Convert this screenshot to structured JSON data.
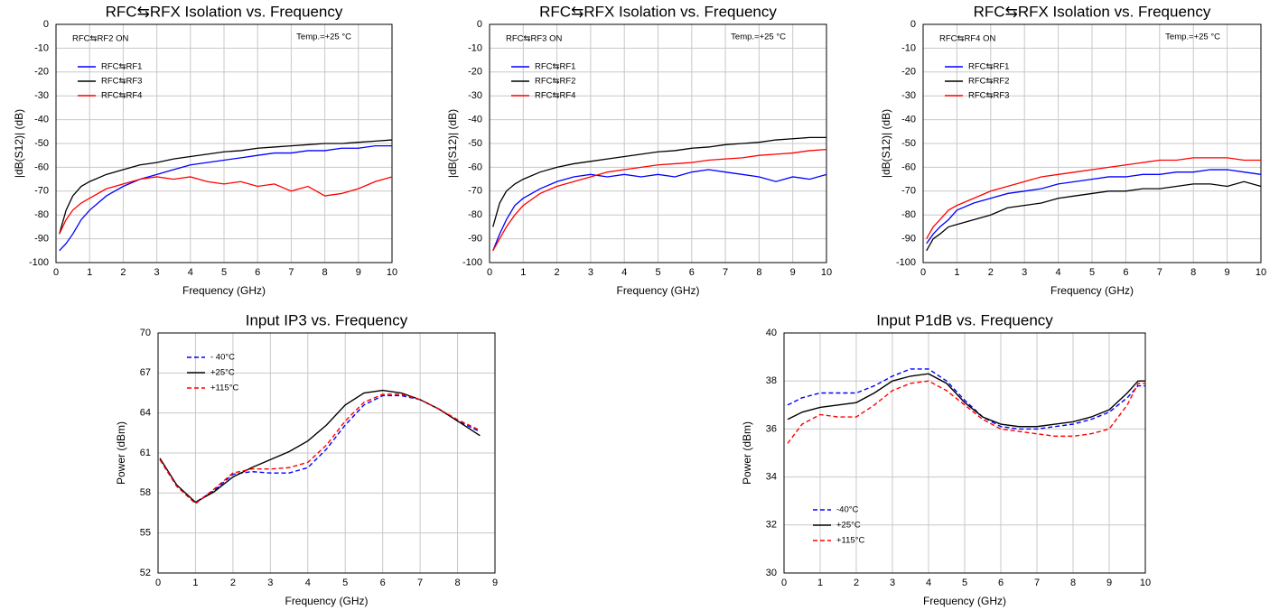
{
  "chart_data": [
    {
      "type": "line",
      "title": "RFC⇆RFX Isolation vs. Frequency",
      "xlabel": "Frequency (GHz)",
      "ylabel": "|dB(S12)| (dB)",
      "annotations": [
        "RFC⇆RF2 ON",
        "Temp.=+25 °C"
      ],
      "legend": "upper left",
      "grid": true,
      "xlim": [
        0,
        10
      ],
      "xticks": [
        0,
        1,
        2,
        3,
        4,
        5,
        6,
        7,
        8,
        9,
        10
      ],
      "ylim": [
        -100,
        0
      ],
      "yticks": [
        0,
        -10,
        -20,
        -30,
        -40,
        -50,
        -60,
        -70,
        -80,
        -90,
        -100
      ],
      "x": [
        0.1,
        0.3,
        0.5,
        0.75,
        1,
        1.5,
        2,
        2.5,
        3,
        3.5,
        4,
        4.5,
        5,
        5.5,
        6,
        6.5,
        7,
        7.5,
        8,
        8.5,
        9,
        9.5,
        10
      ],
      "series": [
        {
          "name": "RFC⇆RF1",
          "color": "#0000ff",
          "values": [
            -95,
            -92,
            -88,
            -82,
            -78,
            -72,
            -68,
            -65,
            -63,
            -61,
            -59,
            -58,
            -57,
            -56,
            -55,
            -54,
            -54,
            -53,
            -53,
            -52,
            -52,
            -51,
            -51
          ]
        },
        {
          "name": "RFC⇆RF3",
          "color": "#000000",
          "values": [
            -88,
            -78,
            -72,
            -68,
            -66,
            -63,
            -61,
            -59,
            -58,
            -56.5,
            -55.5,
            -54.5,
            -53.5,
            -53,
            -52,
            -51.5,
            -51,
            -50.5,
            -50,
            -50,
            -49.5,
            -49,
            -48.5
          ]
        },
        {
          "name": "RFC⇆RF4",
          "color": "#ff0000",
          "values": [
            -88,
            -82,
            -78,
            -75,
            -73,
            -69,
            -67,
            -65,
            -64,
            -65,
            -64,
            -66,
            -67,
            -66,
            -68,
            -67,
            -70,
            -68,
            -72,
            -71,
            -69,
            -66,
            -64
          ]
        }
      ]
    },
    {
      "type": "line",
      "title": "RFC⇆RFX Isolation vs. Frequency",
      "xlabel": "Frequency (GHz)",
      "ylabel": "|dB(S12)| (dB)",
      "annotations": [
        "RFC⇆RF3 ON",
        "Temp.=+25 °C"
      ],
      "legend": "upper left",
      "grid": true,
      "xlim": [
        0,
        10
      ],
      "xticks": [
        0,
        1,
        2,
        3,
        4,
        5,
        6,
        7,
        8,
        9,
        10
      ],
      "ylim": [
        -100,
        0
      ],
      "yticks": [
        0,
        -10,
        -20,
        -30,
        -40,
        -50,
        -60,
        -70,
        -80,
        -90,
        -100
      ],
      "x": [
        0.1,
        0.3,
        0.5,
        0.75,
        1,
        1.5,
        2,
        2.5,
        3,
        3.5,
        4,
        4.5,
        5,
        5.5,
        6,
        6.5,
        7,
        7.5,
        8,
        8.5,
        9,
        9.5,
        10
      ],
      "series": [
        {
          "name": "RFC⇆RF1",
          "color": "#0000ff",
          "values": [
            -95,
            -88,
            -82,
            -76,
            -73,
            -69,
            -66,
            -64,
            -63,
            -64,
            -63,
            -64,
            -63,
            -64,
            -62,
            -61,
            -62,
            -63,
            -64,
            -66,
            -64,
            -65,
            -63
          ]
        },
        {
          "name": "RFC⇆RF2",
          "color": "#000000",
          "values": [
            -85,
            -75,
            -70,
            -67,
            -65,
            -62,
            -60,
            -58.5,
            -57.5,
            -56.5,
            -55.5,
            -54.5,
            -53.5,
            -53,
            -52,
            -51.5,
            -50.5,
            -50,
            -49.5,
            -48.5,
            -48,
            -47.5,
            -47.5
          ]
        },
        {
          "name": "RFC⇆RF4",
          "color": "#ff0000",
          "values": [
            -95,
            -90,
            -85,
            -80,
            -76,
            -71,
            -68,
            -66,
            -64,
            -62,
            -61,
            -60,
            -59,
            -58.5,
            -58,
            -57,
            -56.5,
            -56,
            -55,
            -54.5,
            -54,
            -53,
            -52.5
          ]
        }
      ]
    },
    {
      "type": "line",
      "title": "RFC⇆RFX Isolation vs. Frequency",
      "xlabel": "Frequency (GHz)",
      "ylabel": "|dB(S12)| (dB)",
      "annotations": [
        "RFC⇆RF4 ON",
        "Temp.=+25 °C"
      ],
      "legend": "upper left",
      "grid": true,
      "xlim": [
        0,
        10
      ],
      "xticks": [
        0,
        1,
        2,
        3,
        4,
        5,
        6,
        7,
        8,
        9,
        10
      ],
      "ylim": [
        -100,
        0
      ],
      "yticks": [
        0,
        -10,
        -20,
        -30,
        -40,
        -50,
        -60,
        -70,
        -80,
        -90,
        -100
      ],
      "x": [
        0.1,
        0.3,
        0.5,
        0.75,
        1,
        1.5,
        2,
        2.5,
        3,
        3.5,
        4,
        4.5,
        5,
        5.5,
        6,
        6.5,
        7,
        7.5,
        8,
        8.5,
        9,
        9.5,
        10
      ],
      "series": [
        {
          "name": "RFC⇆RF1",
          "color": "#0000ff",
          "values": [
            -92,
            -88,
            -85,
            -82,
            -78,
            -75,
            -73,
            -71,
            -70,
            -69,
            -67,
            -66,
            -65,
            -64,
            -64,
            -63,
            -63,
            -62,
            -62,
            -61,
            -61,
            -62,
            -63
          ]
        },
        {
          "name": "RFC⇆RF2",
          "color": "#000000",
          "values": [
            -95,
            -90,
            -88,
            -85,
            -84,
            -82,
            -80,
            -77,
            -76,
            -75,
            -73,
            -72,
            -71,
            -70,
            -70,
            -69,
            -69,
            -68,
            -67,
            -67,
            -68,
            -66,
            -68
          ]
        },
        {
          "name": "RFC⇆RF3",
          "color": "#ff0000",
          "values": [
            -90,
            -85,
            -82,
            -78,
            -76,
            -73,
            -70,
            -68,
            -66,
            -64,
            -63,
            -62,
            -61,
            -60,
            -59,
            -58,
            -57,
            -57,
            -56,
            -56,
            -56,
            -57,
            -57
          ]
        }
      ]
    },
    {
      "type": "line",
      "title": "Input IP3 vs. Frequency",
      "xlabel": "Frequency (GHz)",
      "ylabel": "Power (dBm)",
      "legend": "upper left",
      "grid": true,
      "xlim": [
        0,
        9
      ],
      "xticks": [
        0,
        1,
        2,
        3,
        4,
        5,
        6,
        7,
        8,
        9
      ],
      "ylim": [
        52,
        70
      ],
      "yticks": [
        52,
        55,
        58,
        61,
        64,
        67,
        70
      ],
      "x": [
        0.05,
        0.5,
        1,
        1.5,
        2,
        2.5,
        3,
        3.5,
        4,
        4.5,
        5,
        5.5,
        6,
        6.5,
        7,
        7.5,
        8,
        8.6
      ],
      "series": [
        {
          "name": "- 40°C",
          "color": "#0000ff",
          "dashed": true,
          "values": [
            60.5,
            58.5,
            57.3,
            58.2,
            59.4,
            59.6,
            59.5,
            59.5,
            59.9,
            61.3,
            63.1,
            64.6,
            65.3,
            65.3,
            65,
            64.3,
            63.4,
            62.6
          ]
        },
        {
          "name": "+25°C",
          "color": "#000000",
          "dashed": false,
          "values": [
            60.6,
            58.6,
            57.3,
            58.1,
            59.2,
            59.9,
            60.5,
            61.1,
            61.9,
            63.1,
            64.6,
            65.5,
            65.7,
            65.5,
            65,
            64.3,
            63.4,
            62.3
          ]
        },
        {
          "name": "+115°C",
          "color": "#ff0000",
          "dashed": true,
          "values": [
            60.5,
            58.5,
            57.2,
            58.3,
            59.5,
            59.8,
            59.8,
            59.9,
            60.3,
            61.6,
            63.4,
            64.8,
            65.4,
            65.4,
            65,
            64.3,
            63.5,
            62.7
          ]
        }
      ]
    },
    {
      "type": "line",
      "title": "Input P1dB vs. Frequency",
      "xlabel": "Frequency (GHz)",
      "ylabel": "Power (dBm)",
      "legend": "lower left",
      "grid": true,
      "xlim": [
        0,
        10
      ],
      "xticks": [
        0,
        1,
        2,
        3,
        4,
        5,
        6,
        7,
        8,
        9,
        10
      ],
      "ylim": [
        30,
        40
      ],
      "yticks": [
        30,
        32,
        34,
        36,
        38,
        40
      ],
      "x": [
        0.1,
        0.5,
        1,
        1.5,
        2,
        2.5,
        3,
        3.5,
        4,
        4.5,
        5,
        5.5,
        6,
        6.5,
        7,
        7.5,
        8,
        8.5,
        9,
        9.5,
        9.8,
        10
      ],
      "series": [
        {
          "name": "-40°C",
          "color": "#0000ff",
          "dashed": true,
          "values": [
            37,
            37.3,
            37.5,
            37.5,
            37.5,
            37.8,
            38.2,
            38.5,
            38.5,
            38,
            37.2,
            36.5,
            36.1,
            36,
            36,
            36.1,
            36.2,
            36.4,
            36.7,
            37.3,
            37.8,
            37.8
          ]
        },
        {
          "name": "+25°C",
          "color": "#000000",
          "dashed": false,
          "values": [
            36.4,
            36.7,
            36.9,
            37,
            37.1,
            37.5,
            38,
            38.2,
            38.3,
            37.9,
            37.1,
            36.5,
            36.2,
            36.1,
            36.1,
            36.2,
            36.3,
            36.5,
            36.8,
            37.5,
            38,
            38
          ]
        },
        {
          "name": "+115°C",
          "color": "#ff0000",
          "dashed": true,
          "values": [
            35.4,
            36.2,
            36.6,
            36.5,
            36.5,
            37,
            37.6,
            37.9,
            38,
            37.6,
            37,
            36.4,
            36,
            35.9,
            35.8,
            35.7,
            35.7,
            35.8,
            36,
            37,
            37.9,
            37.9
          ]
        }
      ]
    }
  ]
}
